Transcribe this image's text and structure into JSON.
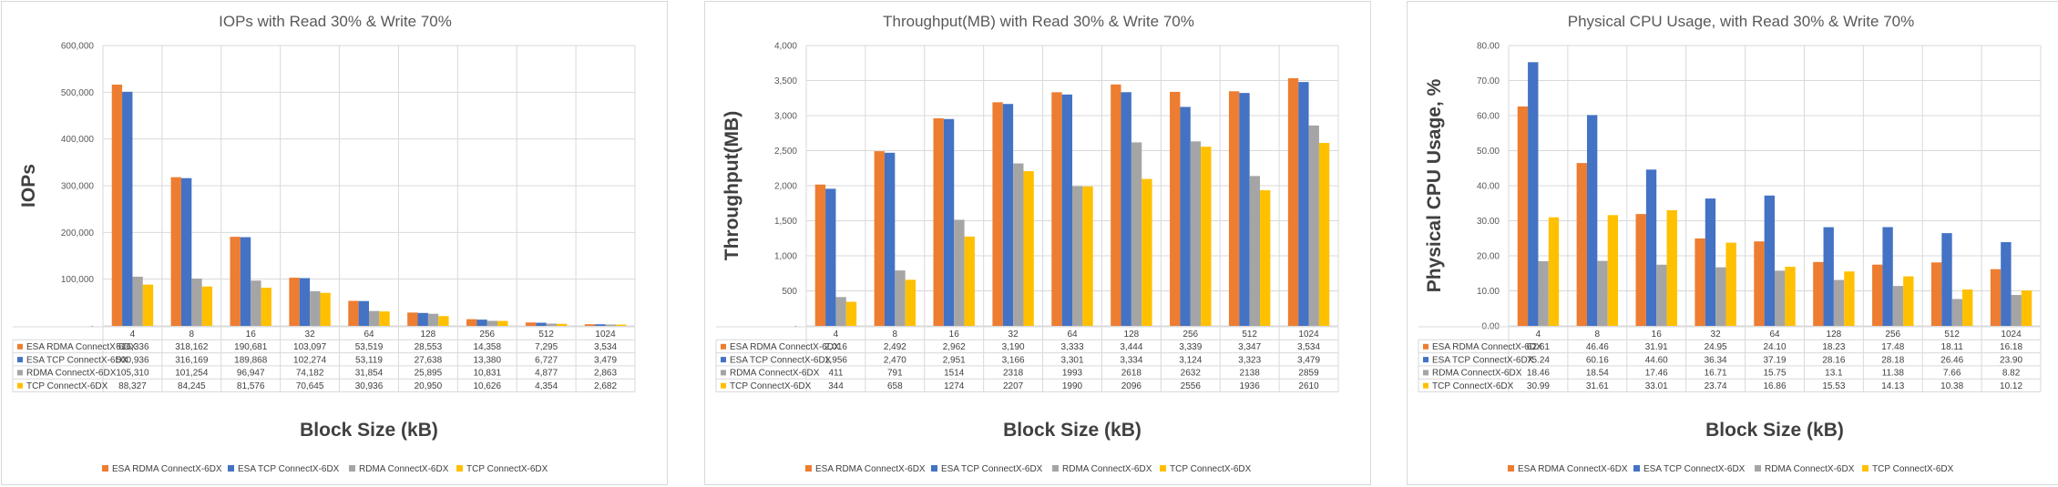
{
  "colors": [
    "#ed7d31",
    "#4472c4",
    "#a5a5a5",
    "#ffc000"
  ],
  "chart_data": [
    {
      "type": "bar",
      "title": "IOPs with Read 30% & Write 70%",
      "ylabel": "IOPs",
      "xlabel": "Block Size (kB)",
      "ylim": [
        0,
        600000
      ],
      "yticks": [
        "-",
        "100,000",
        "200,000",
        "300,000",
        "400,000",
        "500,000",
        "600,000"
      ],
      "categories": [
        "4",
        "8",
        "16",
        "32",
        "64",
        "128",
        "256",
        "512",
        "1024"
      ],
      "legend_position": "bottom",
      "series": [
        {
          "name": "ESA RDMA ConnectX-6DX",
          "values": [
            516336,
            318162,
            190681,
            103097,
            53519,
            28553,
            14358,
            7295,
            3534
          ],
          "labels": [
            "516,336",
            "318,162",
            "190,681",
            "103,097",
            "53,519",
            "28,553",
            "14,358",
            "7,295",
            "3,534"
          ]
        },
        {
          "name": "ESA TCP ConnectX-6DX",
          "values": [
            500936,
            316169,
            189868,
            102274,
            53119,
            27638,
            13380,
            6727,
            3479
          ],
          "labels": [
            "500,936",
            "316,169",
            "189,868",
            "102,274",
            "53,119",
            "27,638",
            "13,380",
            "6,727",
            "3,479"
          ]
        },
        {
          "name": "RDMA ConnectX-6DX",
          "values": [
            105310,
            101254,
            96947,
            74182,
            31854,
            25895,
            10831,
            4877,
            2863
          ],
          "labels": [
            "105,310",
            "101,254",
            "96,947",
            "74,182",
            "31,854",
            "25,895",
            "10,831",
            "4,877",
            "2,863"
          ]
        },
        {
          "name": "TCP ConnectX-6DX",
          "values": [
            88327,
            84245,
            81576,
            70645,
            30936,
            20950,
            10626,
            4354,
            2682
          ],
          "labels": [
            "88,327",
            "84,245",
            "81,576",
            "70,645",
            "30,936",
            "20,950",
            "10,626",
            "4,354",
            "2,682"
          ]
        }
      ]
    },
    {
      "type": "bar",
      "title": "Throughput(MB) with Read 30% & Write 70%",
      "ylabel": "Throughput(MB)",
      "xlabel": "Block Size (kB)",
      "ylim": [
        0,
        4000
      ],
      "yticks": [
        "-",
        "500",
        "1,000",
        "1,500",
        "2,000",
        "2,500",
        "3,000",
        "3,500",
        "4,000"
      ],
      "categories": [
        "4",
        "8",
        "16",
        "32",
        "64",
        "128",
        "256",
        "512",
        "1024"
      ],
      "legend_position": "bottom",
      "series": [
        {
          "name": "ESA RDMA ConnectX-6DX",
          "values": [
            2016,
            2492,
            2962,
            3190,
            3333,
            3444,
            3339,
            3347,
            3534
          ],
          "labels": [
            "2,016",
            "2,492",
            "2,962",
            "3,190",
            "3,333",
            "3,444",
            "3,339",
            "3,347",
            "3,534"
          ]
        },
        {
          "name": "ESA TCP ConnectX-6DX",
          "values": [
            1956,
            2470,
            2951,
            3166,
            3301,
            3334,
            3124,
            3323,
            3479
          ],
          "labels": [
            "1,956",
            "2,470",
            "2,951",
            "3,166",
            "3,301",
            "3,334",
            "3,124",
            "3,323",
            "3,479"
          ]
        },
        {
          "name": "RDMA ConnectX-6DX",
          "values": [
            411,
            791,
            1514,
            2318,
            1993,
            2618,
            2632,
            2138,
            2859
          ],
          "labels": [
            "411",
            "791",
            "1514",
            "2318",
            "1993",
            "2618",
            "2632",
            "2138",
            "2859"
          ]
        },
        {
          "name": "TCP ConnectX-6DX",
          "values": [
            344,
            658,
            1274,
            2207,
            1990,
            2096,
            2556,
            1936,
            2610
          ],
          "labels": [
            "344",
            "658",
            "1274",
            "2207",
            "1990",
            "2096",
            "2556",
            "1936",
            "2610"
          ]
        }
      ]
    },
    {
      "type": "bar",
      "title": "Physical CPU Usage, with Read 30% & Write 70%",
      "ylabel": "Physical CPU Usage, %",
      "xlabel": "Block Size (kB)",
      "ylim": [
        0,
        80
      ],
      "yticks": [
        "0.00",
        "10.00",
        "20.00",
        "30.00",
        "40.00",
        "50.00",
        "60.00",
        "70.00",
        "80.00"
      ],
      "categories": [
        "4",
        "8",
        "16",
        "32",
        "64",
        "128",
        "256",
        "512",
        "1024"
      ],
      "legend_position": "bottom",
      "series": [
        {
          "name": "ESA RDMA ConnectX-6DX",
          "values": [
            62.61,
            46.46,
            31.91,
            24.95,
            24.1,
            18.23,
            17.48,
            18.11,
            16.18
          ],
          "labels": [
            "62.61",
            "46.46",
            "31.91",
            "24.95",
            "24.10",
            "18.23",
            "17.48",
            "18.11",
            "16.18"
          ]
        },
        {
          "name": "ESA TCP ConnectX-6DX",
          "values": [
            75.24,
            60.16,
            44.6,
            36.34,
            37.19,
            28.16,
            28.18,
            26.46,
            23.9
          ],
          "labels": [
            "75.24",
            "60.16",
            "44.60",
            "36.34",
            "37.19",
            "28.16",
            "28.18",
            "26.46",
            "23.90"
          ]
        },
        {
          "name": "RDMA ConnectX-6DX",
          "values": [
            18.46,
            18.54,
            17.46,
            16.71,
            15.75,
            13.1,
            11.38,
            7.66,
            8.82
          ],
          "labels": [
            "18.46",
            "18.54",
            "17.46",
            "16.71",
            "15.75",
            "13.1",
            "11.38",
            "7.66",
            "8.82"
          ]
        },
        {
          "name": "TCP ConnectX-6DX",
          "values": [
            30.99,
            31.61,
            33.01,
            23.74,
            16.86,
            15.53,
            14.13,
            10.38,
            10.12
          ],
          "labels": [
            "30.99",
            "31.61",
            "33.01",
            "23.74",
            "16.86",
            "15.53",
            "14.13",
            "10.38",
            "10.12"
          ]
        }
      ]
    }
  ]
}
